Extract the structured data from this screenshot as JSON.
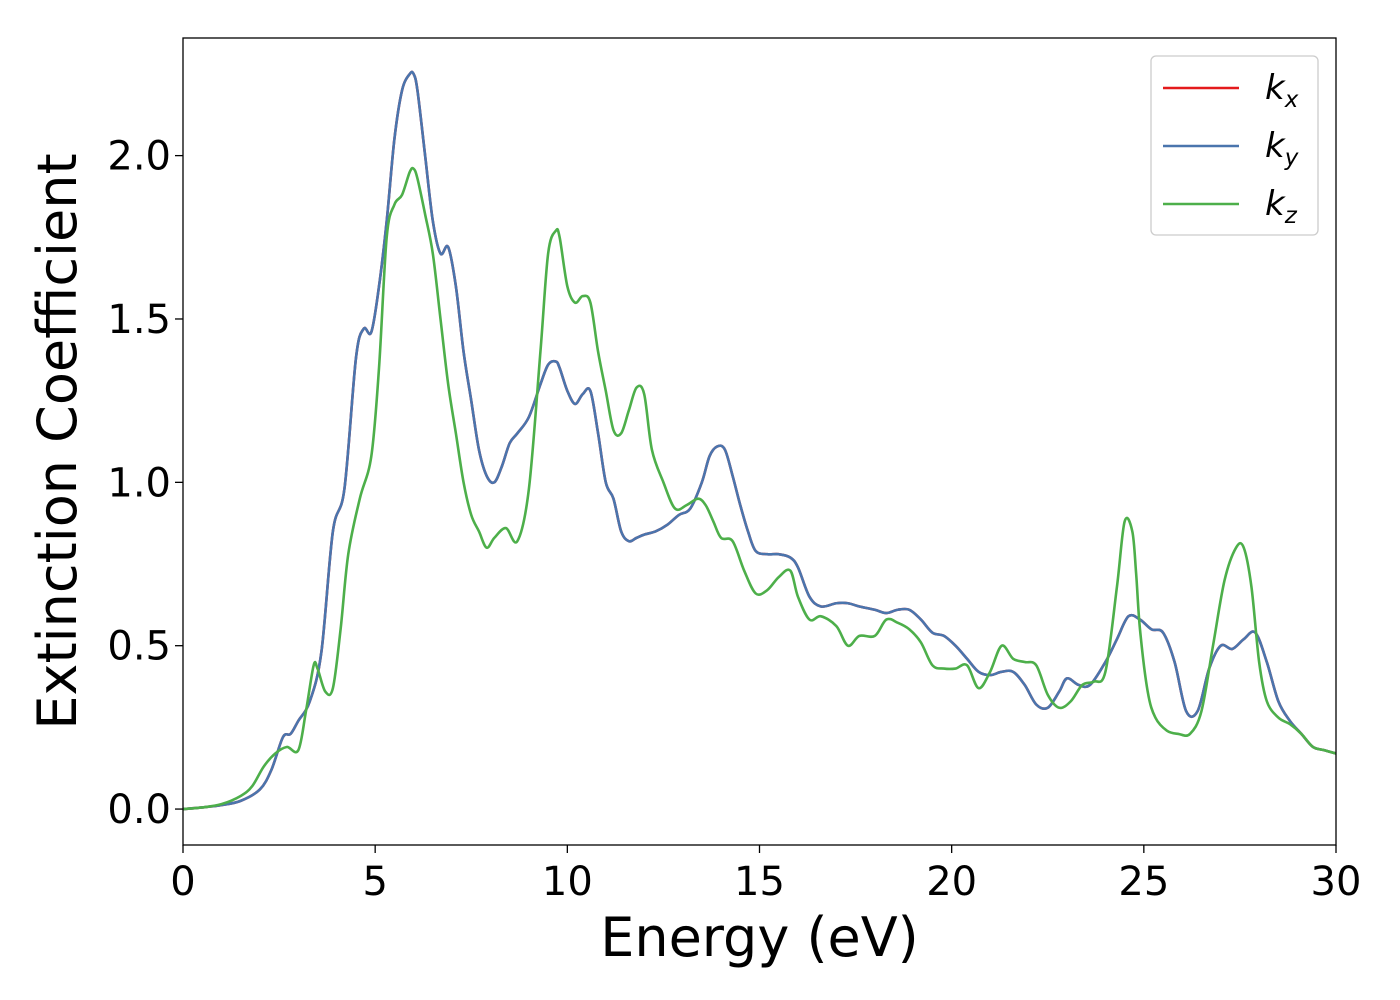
{
  "chart_data": {
    "type": "line",
    "title": "",
    "xlabel": "Energy (eV)",
    "ylabel": "Extinction Coefficient",
    "xlim": [
      0,
      30
    ],
    "ylim": [
      -0.11,
      2.36
    ],
    "xticks": [
      0,
      5,
      10,
      15,
      20,
      25,
      30
    ],
    "xtick_labels": [
      "0",
      "5",
      "10",
      "15",
      "20",
      "25",
      "30"
    ],
    "yticks": [
      0.0,
      0.5,
      1.0,
      1.5,
      2.0
    ],
    "ytick_labels": [
      "0.0",
      "0.5",
      "1.0",
      "1.5",
      "2.0"
    ],
    "grid": false,
    "legend_position": "top-right",
    "series": [
      {
        "name": "k",
        "subscript": "x",
        "color": "#e41a1c",
        "x": [
          0,
          0.5,
          1,
          1.5,
          2,
          2.3,
          2.6,
          2.8,
          3,
          3.3,
          3.6,
          3.9,
          4.2,
          4.5,
          4.7,
          4.9,
          5.1,
          5.3,
          5.5,
          5.7,
          5.9,
          6.0,
          6.1,
          6.3,
          6.5,
          6.7,
          6.9,
          7.1,
          7.3,
          7.5,
          7.7,
          7.9,
          8.1,
          8.3,
          8.5,
          8.7,
          9.0,
          9.3,
          9.5,
          9.7,
          9.8,
          10.0,
          10.2,
          10.4,
          10.6,
          10.8,
          11.0,
          11.2,
          11.4,
          11.6,
          11.8,
          12.0,
          12.3,
          12.6,
          12.9,
          13.2,
          13.5,
          13.7,
          13.9,
          14.1,
          14.3,
          14.5,
          14.7,
          14.9,
          15.2,
          15.5,
          15.8,
          16.0,
          16.3,
          16.6,
          17.0,
          17.3,
          17.6,
          18.0,
          18.3,
          18.6,
          18.9,
          19.2,
          19.5,
          19.8,
          20.1,
          20.4,
          20.7,
          21.0,
          21.3,
          21.6,
          21.9,
          22.2,
          22.5,
          22.8,
          23.0,
          23.3,
          23.6,
          24.0,
          24.3,
          24.6,
          24.9,
          25.2,
          25.5,
          25.8,
          26.1,
          26.4,
          26.7,
          27.0,
          27.3,
          27.6,
          27.9,
          28.2,
          28.5,
          28.8,
          29.1,
          29.4,
          29.7,
          30.0
        ],
        "y": [
          0.0,
          0.005,
          0.012,
          0.025,
          0.06,
          0.12,
          0.22,
          0.23,
          0.27,
          0.33,
          0.48,
          0.85,
          0.98,
          1.38,
          1.47,
          1.46,
          1.6,
          1.8,
          2.05,
          2.2,
          2.25,
          2.25,
          2.2,
          2.0,
          1.8,
          1.7,
          1.72,
          1.6,
          1.4,
          1.25,
          1.1,
          1.02,
          1.0,
          1.05,
          1.12,
          1.15,
          1.2,
          1.3,
          1.36,
          1.37,
          1.35,
          1.28,
          1.24,
          1.27,
          1.28,
          1.15,
          1.0,
          0.95,
          0.85,
          0.82,
          0.83,
          0.84,
          0.85,
          0.87,
          0.9,
          0.92,
          1.0,
          1.08,
          1.11,
          1.1,
          1.02,
          0.93,
          0.85,
          0.79,
          0.78,
          0.78,
          0.77,
          0.74,
          0.65,
          0.62,
          0.63,
          0.63,
          0.62,
          0.61,
          0.6,
          0.61,
          0.61,
          0.58,
          0.54,
          0.53,
          0.5,
          0.46,
          0.42,
          0.41,
          0.42,
          0.42,
          0.38,
          0.32,
          0.31,
          0.36,
          0.4,
          0.38,
          0.38,
          0.45,
          0.52,
          0.59,
          0.58,
          0.55,
          0.54,
          0.45,
          0.3,
          0.3,
          0.43,
          0.5,
          0.49,
          0.52,
          0.54,
          0.45,
          0.33,
          0.27,
          0.23,
          0.19,
          0.18,
          0.17
        ]
      },
      {
        "name": "k",
        "subscript": "y",
        "color": "#4a75ad",
        "x": [
          0,
          0.5,
          1,
          1.5,
          2,
          2.3,
          2.6,
          2.8,
          3,
          3.3,
          3.6,
          3.9,
          4.2,
          4.5,
          4.7,
          4.9,
          5.1,
          5.3,
          5.5,
          5.7,
          5.9,
          6.0,
          6.1,
          6.3,
          6.5,
          6.7,
          6.9,
          7.1,
          7.3,
          7.5,
          7.7,
          7.9,
          8.1,
          8.3,
          8.5,
          8.7,
          9.0,
          9.3,
          9.5,
          9.7,
          9.8,
          10.0,
          10.2,
          10.4,
          10.6,
          10.8,
          11.0,
          11.2,
          11.4,
          11.6,
          11.8,
          12.0,
          12.3,
          12.6,
          12.9,
          13.2,
          13.5,
          13.7,
          13.9,
          14.1,
          14.3,
          14.5,
          14.7,
          14.9,
          15.2,
          15.5,
          15.8,
          16.0,
          16.3,
          16.6,
          17.0,
          17.3,
          17.6,
          18.0,
          18.3,
          18.6,
          18.9,
          19.2,
          19.5,
          19.8,
          20.1,
          20.4,
          20.7,
          21.0,
          21.3,
          21.6,
          21.9,
          22.2,
          22.5,
          22.8,
          23.0,
          23.3,
          23.6,
          24.0,
          24.3,
          24.6,
          24.9,
          25.2,
          25.5,
          25.8,
          26.1,
          26.4,
          26.7,
          27.0,
          27.3,
          27.6,
          27.9,
          28.2,
          28.5,
          28.8,
          29.1,
          29.4,
          29.7,
          30.0
        ],
        "y": [
          0.0,
          0.005,
          0.012,
          0.025,
          0.06,
          0.12,
          0.22,
          0.23,
          0.27,
          0.33,
          0.48,
          0.85,
          0.98,
          1.38,
          1.47,
          1.46,
          1.6,
          1.8,
          2.05,
          2.2,
          2.25,
          2.25,
          2.2,
          2.0,
          1.8,
          1.7,
          1.72,
          1.6,
          1.4,
          1.25,
          1.1,
          1.02,
          1.0,
          1.05,
          1.12,
          1.15,
          1.2,
          1.3,
          1.36,
          1.37,
          1.35,
          1.28,
          1.24,
          1.27,
          1.28,
          1.15,
          1.0,
          0.95,
          0.85,
          0.82,
          0.83,
          0.84,
          0.85,
          0.87,
          0.9,
          0.92,
          1.0,
          1.08,
          1.11,
          1.1,
          1.02,
          0.93,
          0.85,
          0.79,
          0.78,
          0.78,
          0.77,
          0.74,
          0.65,
          0.62,
          0.63,
          0.63,
          0.62,
          0.61,
          0.6,
          0.61,
          0.61,
          0.58,
          0.54,
          0.53,
          0.5,
          0.46,
          0.42,
          0.41,
          0.42,
          0.42,
          0.38,
          0.32,
          0.31,
          0.36,
          0.4,
          0.38,
          0.38,
          0.45,
          0.52,
          0.59,
          0.58,
          0.55,
          0.54,
          0.45,
          0.3,
          0.3,
          0.43,
          0.5,
          0.49,
          0.52,
          0.54,
          0.45,
          0.33,
          0.27,
          0.23,
          0.19,
          0.18,
          0.17
        ]
      },
      {
        "name": "k",
        "subscript": "z",
        "color": "#4daf4a",
        "x": [
          0,
          0.5,
          1,
          1.5,
          1.8,
          2.1,
          2.4,
          2.7,
          3.0,
          3.2,
          3.4,
          3.5,
          3.7,
          3.9,
          4.1,
          4.3,
          4.6,
          4.9,
          5.1,
          5.3,
          5.5,
          5.7,
          5.9,
          6.0,
          6.1,
          6.3,
          6.5,
          6.7,
          6.9,
          7.1,
          7.3,
          7.5,
          7.7,
          7.9,
          8.1,
          8.4,
          8.7,
          9.0,
          9.3,
          9.5,
          9.7,
          9.8,
          10.0,
          10.2,
          10.4,
          10.6,
          10.8,
          11.0,
          11.2,
          11.4,
          11.6,
          11.8,
          12.0,
          12.2,
          12.5,
          12.8,
          13.1,
          13.4,
          13.6,
          13.8,
          14.0,
          14.3,
          14.6,
          14.9,
          15.2,
          15.5,
          15.8,
          16.0,
          16.3,
          16.6,
          17.0,
          17.3,
          17.6,
          18.0,
          18.3,
          18.6,
          18.9,
          19.2,
          19.5,
          19.8,
          20.1,
          20.4,
          20.7,
          21.0,
          21.3,
          21.6,
          21.9,
          22.2,
          22.5,
          22.8,
          23.1,
          23.4,
          23.7,
          24.0,
          24.3,
          24.5,
          24.7,
          24.8,
          24.9,
          25.1,
          25.3,
          25.6,
          25.9,
          26.2,
          26.5,
          26.8,
          27.1,
          27.4,
          27.6,
          27.8,
          28.0,
          28.2,
          28.5,
          28.8,
          29.1,
          29.4,
          29.7,
          30.0
        ],
        "y": [
          0.0,
          0.005,
          0.015,
          0.04,
          0.07,
          0.13,
          0.17,
          0.19,
          0.18,
          0.3,
          0.44,
          0.43,
          0.36,
          0.37,
          0.55,
          0.78,
          0.95,
          1.08,
          1.35,
          1.75,
          1.85,
          1.88,
          1.95,
          1.96,
          1.93,
          1.82,
          1.7,
          1.5,
          1.3,
          1.15,
          1.0,
          0.9,
          0.85,
          0.8,
          0.83,
          0.86,
          0.82,
          0.98,
          1.4,
          1.7,
          1.77,
          1.75,
          1.6,
          1.55,
          1.57,
          1.55,
          1.4,
          1.28,
          1.16,
          1.15,
          1.22,
          1.29,
          1.27,
          1.1,
          1.0,
          0.92,
          0.93,
          0.95,
          0.93,
          0.88,
          0.83,
          0.82,
          0.73,
          0.66,
          0.67,
          0.71,
          0.73,
          0.65,
          0.58,
          0.59,
          0.56,
          0.5,
          0.53,
          0.53,
          0.58,
          0.57,
          0.55,
          0.51,
          0.44,
          0.43,
          0.43,
          0.44,
          0.37,
          0.42,
          0.5,
          0.46,
          0.45,
          0.44,
          0.35,
          0.31,
          0.33,
          0.38,
          0.39,
          0.42,
          0.68,
          0.88,
          0.85,
          0.72,
          0.55,
          0.36,
          0.28,
          0.24,
          0.23,
          0.23,
          0.3,
          0.5,
          0.7,
          0.8,
          0.8,
          0.68,
          0.45,
          0.33,
          0.28,
          0.26,
          0.23,
          0.19,
          0.18,
          0.17
        ]
      }
    ]
  }
}
